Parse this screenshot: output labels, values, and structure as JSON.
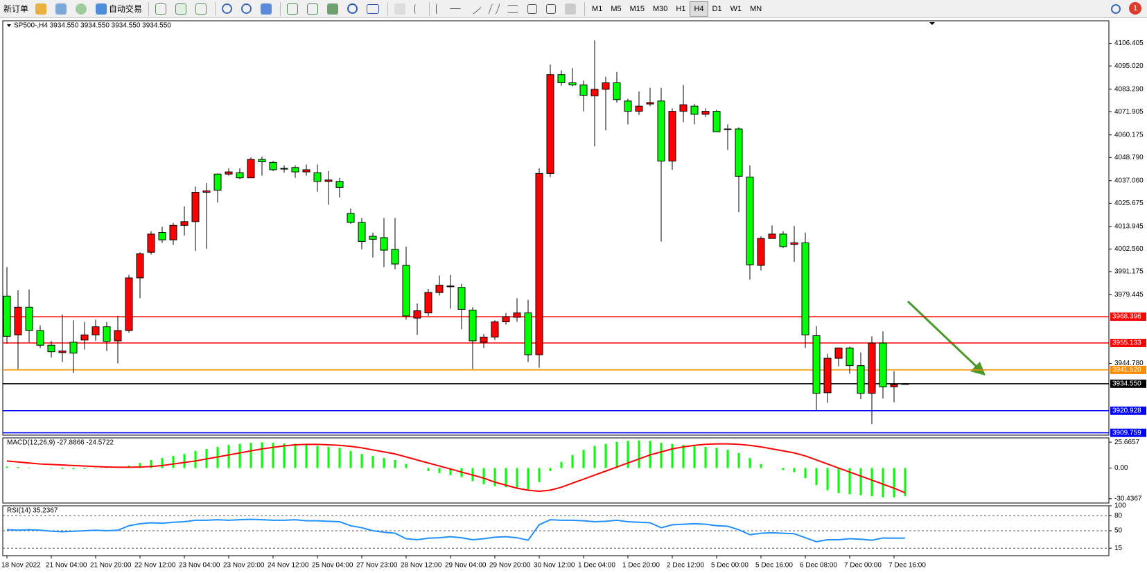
{
  "toolbar": {
    "buttons": [
      "新订单",
      "自动交易"
    ],
    "timeframes": [
      "M1",
      "M5",
      "M15",
      "M30",
      "H1",
      "H4",
      "D1",
      "W1",
      "MN"
    ],
    "active_timeframe": 5,
    "notifications": "1"
  },
  "chart_data": [
    {
      "type": "candlestick",
      "title": "SP500-,H4  3934.550 3934.550 3934.550 3934.550",
      "up_color": "#ff0000",
      "down_color": "#00ff00",
      "grid": false,
      "categories": [
        "18 Nov 2022",
        null,
        null,
        null,
        "21 Nov 04:00",
        null,
        null,
        null,
        "21 Nov 20:00",
        null,
        null,
        null,
        "22 Nov 12:00",
        null,
        null,
        null,
        "23 Nov 04:00",
        null,
        null,
        null,
        "23 Nov 20:00",
        null,
        null,
        null,
        "24 Nov 12:00",
        null,
        null,
        null,
        "25 Nov 04:00",
        null,
        null,
        null,
        "27 Nov 23:00",
        null,
        null,
        null,
        "28 Nov 12:00",
        null,
        null,
        null,
        "29 Nov 04:00",
        null,
        null,
        null,
        "29 Nov 20:00",
        null,
        null,
        null,
        "30 Nov 12:00",
        null,
        null,
        null,
        "1 Dec 04:00",
        null,
        null,
        null,
        "1 Dec 20:00",
        null,
        null,
        null,
        "2 Dec 12:00",
        null,
        null,
        null,
        "5 Dec 00:00",
        null,
        null,
        null,
        "5 Dec 16:00",
        null,
        null,
        null,
        "6 Dec 08:00",
        null,
        null,
        null,
        "7 Dec 00:00",
        null,
        null,
        null,
        "7 Dec 16:00",
        null
      ],
      "open": [
        3978.8,
        3959.2,
        3973.2,
        3961.4,
        3954.0,
        3950.3,
        3955.5,
        3956.6,
        3959.2,
        3963.3,
        3956.2,
        3961.4,
        3988.0,
        4000.9,
        4010.9,
        4007.2,
        4014.5,
        4016.4,
        4031.2,
        4040.4,
        4040.4,
        4041.1,
        4038.5,
        4047.8,
        4046.3,
        4043.3,
        4043.7,
        4041.5,
        4041.1,
        4036.7,
        4036.7,
        4020.5,
        4016.0,
        4009.0,
        4008.3,
        4002.4,
        3994.3,
        3967.7,
        3970.3,
        3980.6,
        3983.5,
        3983.2,
        3971.7,
        3955.5,
        3958.1,
        3965.8,
        3968.1,
        3970.3,
        3949.2,
        4040.7,
        4090.6,
        4086.5,
        4085.4,
        4079.9,
        4083.2,
        4086.5,
        4077.3,
        4072.1,
        4075.8,
        4077.3,
        4047.0,
        4072.1,
        4074.7,
        4070.6,
        4072.1,
        4063.2,
        4063.2,
        4038.9,
        3994.3,
        4007.9,
        4010.1,
        4004.9,
        4005.7,
        3958.8,
        3930.0,
        3947.4,
        3952.6,
        3943.7,
        3929.7,
        3955.1,
        3933.0,
        3934.55
      ],
      "high": [
        3993.5,
        3981.7,
        3982.1,
        3964.0,
        3956.2,
        3969.5,
        3966.6,
        3965.8,
        3966.9,
        3965.8,
        3968.8,
        3989.5,
        4000.9,
        4011.6,
        4013.8,
        4015.7,
        4024.1,
        4034.1,
        4035.9,
        4040.7,
        4043.3,
        4043.3,
        4048.9,
        4049.2,
        4047.0,
        4044.8,
        4044.8,
        4045.2,
        4045.2,
        4041.9,
        4038.5,
        4023.0,
        4018.2,
        4010.9,
        4018.2,
        4018.2,
        4003.8,
        3975.1,
        3982.4,
        3989.2,
        3989.5,
        3985.0,
        3973.2,
        3959.6,
        3966.6,
        3970.3,
        3977.7,
        3976.9,
        4043.3,
        4095.7,
        4092.8,
        4093.9,
        4087.6,
        4107.9,
        4089.5,
        4092.0,
        4078.4,
        4082.1,
        4083.9,
        4083.9,
        4073.6,
        4085.4,
        4075.8,
        4073.6,
        4072.9,
        4065.5,
        4064.0,
        4044.8,
        4009.0,
        4014.5,
        4011.6,
        4014.2,
        4010.9,
        3963.6,
        3949.6,
        3952.9,
        3953.3,
        3950.3,
        3958.5,
        3961.0,
        3940.9,
        3934.55
      ],
      "low": [
        3954.8,
        3941.9,
        3955.5,
        3952.6,
        3947.8,
        3945.5,
        3940.0,
        3951.8,
        3956.2,
        3951.1,
        3944.8,
        3960.3,
        3977.7,
        3999.8,
        4005.7,
        4004.6,
        4009.4,
        4001.6,
        4002.7,
        4026.0,
        4039.6,
        4037.8,
        4038.5,
        4039.6,
        4041.9,
        4041.1,
        4038.5,
        4039.6,
        4031.5,
        4024.9,
        4028.6,
        4015.3,
        4002.4,
        3998.3,
        3993.5,
        3992.4,
        3966.9,
        3959.2,
        3968.8,
        3979.1,
        3972.5,
        3962.1,
        3941.9,
        3952.6,
        3956.6,
        3964.4,
        3965.8,
        3945.5,
        3942.6,
        4038.9,
        4085.0,
        4084.7,
        4072.1,
        4054.4,
        4062.5,
        4076.5,
        4065.5,
        4070.3,
        4074.7,
        4006.4,
        4042.6,
        4066.6,
        4065.5,
        4069.2,
        4061.8,
        4052.6,
        4021.2,
        3987.2,
        3991.7,
        4008.3,
        4003.1,
        3996.1,
        3952.6,
        3920.8,
        3924.9,
        3943.3,
        3939.6,
        3926.7,
        3914.2,
        3927.1,
        3925.2,
        3934.55
      ],
      "close": [
        3958.5,
        3973.2,
        3961.4,
        3954.0,
        3950.7,
        3951.1,
        3950.0,
        3959.2,
        3963.3,
        3955.9,
        3961.4,
        3988.0,
        4000.2,
        4010.1,
        4007.2,
        4014.5,
        4016.4,
        4031.2,
        4031.9,
        4032.3,
        4041.5,
        4038.5,
        4047.8,
        4046.6,
        4042.6,
        4042.9,
        4041.5,
        4042.6,
        4036.7,
        4037.4,
        4033.7,
        4016.0,
        4006.4,
        4007.5,
        4002.0,
        3995.0,
        3968.8,
        3971.4,
        3980.6,
        3984.3,
        3983.9,
        3972.1,
        3956.2,
        3958.1,
        3965.8,
        3968.4,
        3970.3,
        3949.2,
        4040.7,
        4090.6,
        4086.5,
        4085.4,
        4080.2,
        4083.2,
        4086.5,
        4078.0,
        4072.1,
        4074.7,
        4076.5,
        4047.0,
        4072.1,
        4075.4,
        4070.6,
        4072.1,
        4061.8,
        4062.9,
        4039.3,
        3994.6,
        4007.9,
        4010.1,
        4003.8,
        4005.7,
        3959.2,
        3929.7,
        3947.4,
        3952.6,
        3943.7,
        3929.7,
        3955.1,
        3933.0,
        3934.1,
        3934.55
      ],
      "ylim": [
        3908.6,
        4117.8
      ],
      "yticks": [
        4106.405,
        {
          "value": 4095.02,
          "label": "4095.020"
        },
        {
          "value": 4083.29,
          "label": "4083.290"
        },
        4071.905,
        4060.175,
        {
          "value": 4048.79,
          "label": "4048.790"
        },
        {
          "value": 4037.06,
          "label": "4037.060"
        },
        4025.675,
        4013.945,
        {
          "value": 4002.56,
          "label": "4002.560"
        },
        3991.175,
        3979.445,
        {
          "value": 3944.78,
          "label": "3944.780"
        }
      ],
      "hlines": [
        {
          "value": 3968.396,
          "color": "#ff0000"
        },
        {
          "value": 3955.133,
          "color": "#ff0000"
        },
        {
          "value": 3941.52,
          "label": "3941.520",
          "color": "#ff8c00"
        },
        {
          "value": 3934.55,
          "label": "3934.550",
          "color": "#000000"
        },
        {
          "value": 3920.928,
          "color": "#0000ff"
        },
        {
          "value": 3909.759,
          "color": "#0000ff"
        }
      ]
    },
    {
      "type": "macd",
      "title": "MACD(12,26,9) -27.8866 -24.5722",
      "grid": false,
      "histogram": {
        "color": "#00ff00",
        "values": [
          1.5,
          1.0,
          0.5,
          0.2,
          -0.5,
          -1.0,
          -1.2,
          -1.0,
          -0.5,
          -0.3,
          0.2,
          2.5,
          5,
          8,
          10,
          12,
          14,
          17,
          19,
          21,
          23,
          24,
          25,
          25.5,
          25,
          24.5,
          24,
          23,
          22,
          21,
          20,
          17,
          14,
          12,
          10,
          8,
          4,
          0,
          -3,
          -5,
          -7,
          -9,
          -13,
          -16,
          -18,
          -19,
          -20,
          -22,
          -14,
          -3,
          6,
          13,
          18,
          22,
          24,
          26,
          27,
          27.5,
          27,
          25,
          24,
          23,
          22,
          21,
          20,
          18,
          15,
          10,
          4,
          0,
          -2,
          -4,
          -10,
          -17,
          -22,
          -25,
          -26,
          -27,
          -28,
          -29,
          -29,
          -27.8866
        ]
      },
      "signal": {
        "color": "#ff0000",
        "values": [
          7,
          6,
          5,
          4,
          3.5,
          3,
          2.5,
          2,
          1.5,
          1,
          0.8,
          0.8,
          1,
          1.5,
          2.5,
          4,
          5.5,
          7,
          9,
          11,
          13,
          15,
          17,
          19,
          20.5,
          22,
          23,
          23.5,
          23.5,
          23,
          22.5,
          21.5,
          20,
          18,
          16,
          14,
          11,
          8,
          5,
          2,
          -1,
          -4,
          -7,
          -10,
          -14,
          -17,
          -20,
          -22,
          -23,
          -22,
          -19,
          -15,
          -11,
          -7,
          -3,
          1,
          5,
          9,
          13,
          16,
          19,
          21,
          22.5,
          23.5,
          24,
          24,
          23.5,
          22.5,
          21,
          19,
          17,
          15,
          12,
          8,
          4,
          0,
          -4,
          -8,
          -12,
          -16,
          -20,
          -24.5722
        ]
      },
      "ylim": [
        -34.7,
        29.9
      ],
      "yticks": [
        25.6657,
        {
          "value": 0,
          "label": "0.00"
        },
        -30.4367
      ]
    },
    {
      "type": "line",
      "title": "RSI(14) 35.2367",
      "color": "#1e90ff",
      "grid": true,
      "values": [
        52,
        51,
        52,
        51,
        49,
        48,
        49,
        50,
        51,
        50,
        51,
        60,
        64,
        66,
        65,
        67,
        68,
        71,
        71,
        72,
        71,
        72,
        73,
        72,
        71,
        71,
        72,
        70,
        70,
        69,
        68,
        60,
        56,
        50,
        47,
        45,
        34,
        32,
        35,
        36,
        38,
        36,
        32,
        34,
        37,
        38,
        36,
        31,
        62,
        72,
        71,
        71,
        70,
        68,
        69,
        71,
        68,
        67,
        66,
        56,
        62,
        63,
        64,
        63,
        60,
        59,
        52,
        42,
        45,
        46,
        45,
        44,
        36,
        28,
        32,
        32,
        34,
        33,
        31,
        35.5,
        35,
        35.2367
      ],
      "ylim": [
        0,
        100
      ],
      "yticks": [
        100,
        80,
        50,
        15
      ]
    }
  ]
}
